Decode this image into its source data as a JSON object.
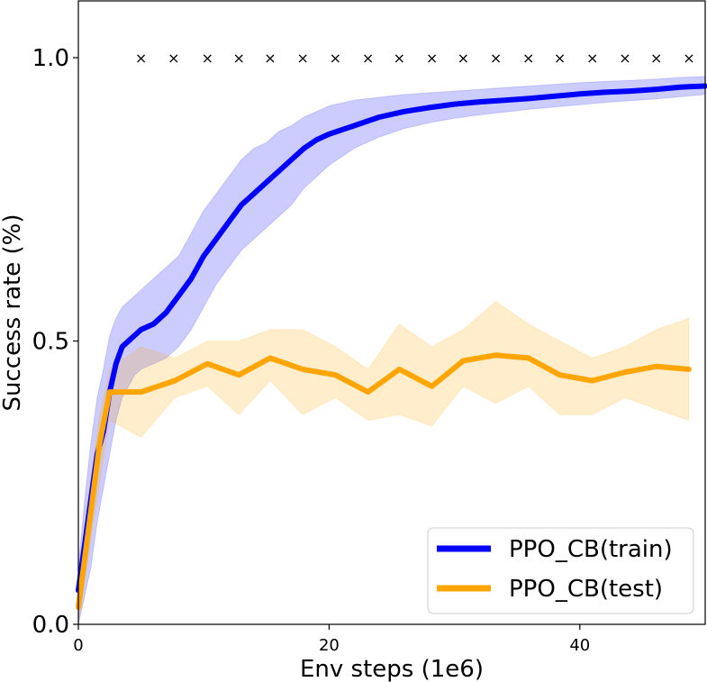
{
  "chart_data": {
    "type": "line",
    "title": "",
    "xlabel": "Env steps (1e6)",
    "ylabel": "Success rate (%)",
    "xlim": [
      0,
      50
    ],
    "ylim": [
      0,
      1.1
    ],
    "xticks": [
      0,
      20,
      40
    ],
    "xtick_labels": [
      "0",
      "20",
      "40"
    ],
    "yticks": [
      0.0,
      0.5,
      1.0
    ],
    "ytick_labels": [
      "0.0",
      "0.5",
      "1.0"
    ],
    "grid": false,
    "legend_position": "bottom-right",
    "series": [
      {
        "name": "PPO_CB(train)",
        "color": "#0000ff",
        "band_color": "#0000ff",
        "x": [
          0,
          0.5,
          1,
          1.5,
          2,
          2.5,
          3,
          3.5,
          4,
          4.5,
          5,
          6,
          7,
          8,
          9,
          10,
          11,
          12,
          13,
          14,
          15,
          16,
          17,
          18,
          19,
          20,
          22,
          24,
          26,
          28,
          30,
          32,
          34,
          36,
          38,
          40,
          42,
          44,
          46,
          48,
          50
        ],
        "y": [
          0.06,
          0.14,
          0.22,
          0.3,
          0.34,
          0.41,
          0.46,
          0.49,
          0.5,
          0.51,
          0.52,
          0.53,
          0.55,
          0.58,
          0.61,
          0.65,
          0.68,
          0.71,
          0.74,
          0.76,
          0.78,
          0.8,
          0.82,
          0.84,
          0.855,
          0.865,
          0.88,
          0.895,
          0.905,
          0.912,
          0.918,
          0.922,
          0.925,
          0.928,
          0.932,
          0.936,
          0.939,
          0.941,
          0.944,
          0.948,
          0.95
        ],
        "lower": [
          0.0,
          0.05,
          0.1,
          0.18,
          0.24,
          0.3,
          0.36,
          0.4,
          0.42,
          0.44,
          0.45,
          0.46,
          0.47,
          0.49,
          0.52,
          0.56,
          0.6,
          0.63,
          0.66,
          0.68,
          0.7,
          0.72,
          0.74,
          0.77,
          0.79,
          0.81,
          0.84,
          0.86,
          0.875,
          0.885,
          0.893,
          0.899,
          0.904,
          0.909,
          0.913,
          0.917,
          0.921,
          0.924,
          0.927,
          0.931,
          0.935
        ],
        "upper": [
          0.1,
          0.22,
          0.32,
          0.4,
          0.45,
          0.51,
          0.54,
          0.56,
          0.57,
          0.58,
          0.59,
          0.61,
          0.63,
          0.65,
          0.69,
          0.73,
          0.76,
          0.79,
          0.82,
          0.84,
          0.85,
          0.87,
          0.88,
          0.895,
          0.905,
          0.915,
          0.925,
          0.93,
          0.935,
          0.938,
          0.941,
          0.944,
          0.947,
          0.95,
          0.953,
          0.956,
          0.958,
          0.96,
          0.962,
          0.965,
          0.967
        ]
      },
      {
        "name": "PPO_CB(test)",
        "color": "#ffa500",
        "band_color": "#ffa500",
        "x": [
          0,
          1,
          1.7,
          2.5,
          5,
          7.7,
          10.3,
          12.8,
          15.3,
          17.9,
          20.5,
          23.1,
          25.6,
          28.2,
          30.7,
          33.3,
          35.9,
          38.4,
          41.0,
          43.6,
          46.1,
          48.7
        ],
        "y": [
          0.03,
          0.2,
          0.32,
          0.41,
          0.41,
          0.43,
          0.46,
          0.44,
          0.47,
          0.45,
          0.44,
          0.41,
          0.45,
          0.42,
          0.465,
          0.475,
          0.47,
          0.44,
          0.43,
          0.445,
          0.455,
          0.45
        ],
        "lower": [
          0.0,
          0.15,
          0.25,
          0.36,
          0.33,
          0.4,
          0.42,
          0.37,
          0.43,
          0.37,
          0.4,
          0.36,
          0.37,
          0.35,
          0.42,
          0.39,
          0.42,
          0.37,
          0.37,
          0.4,
          0.38,
          0.36
        ],
        "upper": [
          0.08,
          0.26,
          0.37,
          0.45,
          0.49,
          0.47,
          0.5,
          0.5,
          0.52,
          0.52,
          0.49,
          0.45,
          0.53,
          0.49,
          0.52,
          0.57,
          0.53,
          0.5,
          0.47,
          0.49,
          0.52,
          0.54
        ]
      }
    ],
    "markers": {
      "label": "×",
      "y": 1.0,
      "x": [
        5,
        7.6,
        10.3,
        12.8,
        15.3,
        17.9,
        20.5,
        23.1,
        25.6,
        28.2,
        30.7,
        33.3,
        35.9,
        38.4,
        41.0,
        43.6,
        46.1,
        48.7
      ]
    }
  }
}
